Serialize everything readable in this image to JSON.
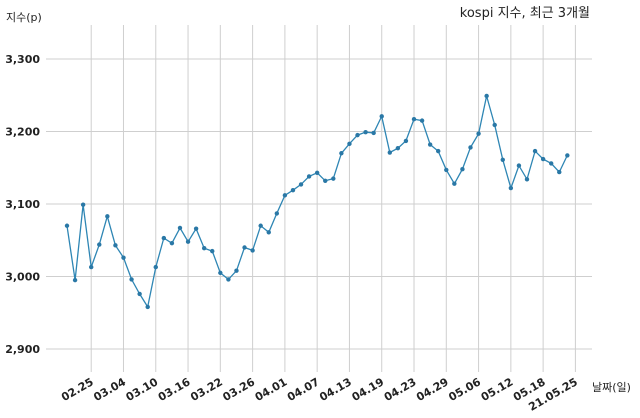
{
  "chart_data": {
    "type": "line",
    "title": "kospi 지수, 최근 3개월",
    "xlabel": "날짜(일)",
    "ylabel": "지수(p)",
    "ylim": [
      2850,
      3360
    ],
    "yticks": [
      2900,
      3000,
      3100,
      3200,
      3300
    ],
    "ytick_labels": [
      "2,900",
      "3,000",
      "3,100",
      "3,200",
      "3,300"
    ],
    "grid": true,
    "legend": "none",
    "line_color": "#2e86b4",
    "x_tick_labels": [
      "02.25",
      "03.04",
      "03.10",
      "03.16",
      "03.22",
      "03.26",
      "04.01",
      "04.07",
      "04.13",
      "04.19",
      "04.23",
      "04.29",
      "05.06",
      "05.12",
      "05.18",
      "21.05.25"
    ],
    "x_tick_index": [
      3,
      7,
      11,
      15,
      19,
      23,
      27,
      31,
      35,
      39,
      43,
      47,
      51,
      55,
      59,
      63
    ],
    "values": [
      3070,
      2995,
      3099,
      3013,
      3044,
      3083,
      3043,
      3026,
      2996,
      2976,
      2958,
      3013,
      3053,
      3046,
      3067,
      3048,
      3066,
      3039,
      3035,
      3005,
      2996,
      3008,
      3040,
      3036,
      3070,
      3061,
      3087,
      3112,
      3119,
      3127,
      3138,
      3143,
      3132,
      3135,
      3170,
      3183,
      3195,
      3199,
      3198,
      3221,
      3171,
      3177,
      3187,
      3217,
      3215,
      3182,
      3173,
      3147,
      3128,
      3148,
      3178,
      3197,
      3249,
      3209,
      3161,
      3122,
      3153,
      3134,
      3173,
      3162,
      3156,
      3144,
      3167
    ]
  }
}
